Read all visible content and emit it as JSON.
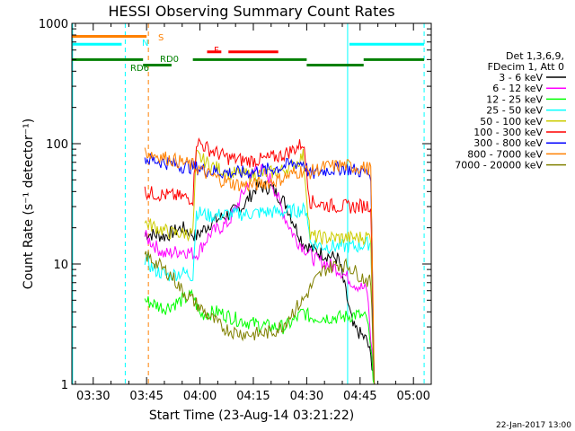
{
  "chart_data": {
    "type": "line",
    "title": "HESSI Observing Summary Count Rates",
    "xlabel": "Start Time (23-Aug-14 03:21:22)",
    "ylabel": "Count Rate (s⁻¹ detector⁻¹)",
    "y_scale": "log",
    "ylim": [
      1,
      1000
    ],
    "x_unit": "minutes after 03:00 UT",
    "xlim": [
      24,
      125
    ],
    "x_ticks": [
      {
        "t": 30,
        "label": "03:30"
      },
      {
        "t": 45,
        "label": "03:45"
      },
      {
        "t": 60,
        "label": "04:00"
      },
      {
        "t": 75,
        "label": "04:15"
      },
      {
        "t": 90,
        "label": "04:30"
      },
      {
        "t": 105,
        "label": "04:45"
      },
      {
        "t": 120,
        "label": "05:00"
      }
    ],
    "y_ticks": [
      {
        "v": 1,
        "label": "1"
      },
      {
        "v": 10,
        "label": "10"
      },
      {
        "v": 100,
        "label": "100"
      },
      {
        "v": 1000,
        "label": "1000"
      }
    ],
    "legend": {
      "header": [
        "Det 1,3,6,9,",
        "FDecim 1, Att 0"
      ],
      "placement": "right"
    },
    "series": [
      {
        "name": "3 - 6 keV",
        "color": "#000000",
        "points": [
          [
            44.5,
            18
          ],
          [
            50,
            17
          ],
          [
            55,
            20
          ],
          [
            59,
            17
          ],
          [
            63,
            22
          ],
          [
            68,
            26
          ],
          [
            72,
            30
          ],
          [
            76,
            44
          ],
          [
            80,
            43
          ],
          [
            84,
            32
          ],
          [
            87,
            20
          ],
          [
            89,
            15
          ],
          [
            92,
            13
          ],
          [
            95,
            12
          ],
          [
            99,
            11
          ],
          [
            103,
            3
          ],
          [
            107,
            2.3
          ],
          [
            109,
            1.2
          ]
        ]
      },
      {
        "name": "6 - 12 keV",
        "color": "#ff00ff",
        "points": [
          [
            44.5,
            17
          ],
          [
            50,
            12
          ],
          [
            55,
            13
          ],
          [
            59,
            12
          ],
          [
            63,
            18
          ],
          [
            68,
            22
          ],
          [
            72,
            38
          ],
          [
            76,
            66
          ],
          [
            80,
            50
          ],
          [
            84,
            24
          ],
          [
            87,
            16
          ],
          [
            89,
            14
          ],
          [
            92,
            11
          ],
          [
            96,
            10
          ],
          [
            99,
            9
          ],
          [
            103,
            7
          ],
          [
            107,
            6
          ],
          [
            109,
            1
          ]
        ]
      },
      {
        "name": "12 - 25 keV",
        "color": "#00ff00",
        "points": [
          [
            44.5,
            5
          ],
          [
            50,
            4.3
          ],
          [
            55,
            5
          ],
          [
            58,
            5.5
          ],
          [
            60,
            3.8
          ],
          [
            65,
            4
          ],
          [
            70,
            3.5
          ],
          [
            75,
            3.2
          ],
          [
            80,
            3
          ],
          [
            84,
            3
          ],
          [
            87,
            3.5
          ],
          [
            89,
            4
          ],
          [
            91,
            3.6
          ],
          [
            95,
            3.6
          ],
          [
            100,
            3.6
          ],
          [
            104,
            3.8
          ],
          [
            107,
            3.5
          ],
          [
            109,
            1
          ]
        ]
      },
      {
        "name": "25 - 50 keV",
        "color": "#00ffff",
        "points": [
          [
            44.5,
            11
          ],
          [
            47,
            9
          ],
          [
            51,
            8
          ],
          [
            55,
            8.5
          ],
          [
            58,
            8
          ],
          [
            59,
            27
          ],
          [
            63,
            25
          ],
          [
            68,
            26
          ],
          [
            73,
            26
          ],
          [
            78,
            27
          ],
          [
            83,
            27
          ],
          [
            88,
            28
          ],
          [
            90,
            28
          ],
          [
            91,
            15
          ],
          [
            95,
            14
          ],
          [
            100,
            14
          ],
          [
            104,
            14
          ],
          [
            108,
            15
          ],
          [
            109,
            1
          ]
        ]
      },
      {
        "name": "50 - 100 keV",
        "color": "#cccc00",
        "points": [
          [
            44.5,
            22
          ],
          [
            48,
            20
          ],
          [
            52,
            18
          ],
          [
            56,
            18
          ],
          [
            58,
            18
          ],
          [
            59,
            80
          ],
          [
            63,
            66
          ],
          [
            68,
            57
          ],
          [
            73,
            55
          ],
          [
            78,
            56
          ],
          [
            83,
            60
          ],
          [
            87,
            68
          ],
          [
            89,
            80
          ],
          [
            91,
            17
          ],
          [
            95,
            16.5
          ],
          [
            100,
            16.5
          ],
          [
            104,
            16.5
          ],
          [
            108,
            17
          ],
          [
            109,
            1
          ]
        ]
      },
      {
        "name": "100 - 300 keV",
        "color": "#ff0000",
        "points": [
          [
            44.5,
            40
          ],
          [
            48,
            38
          ],
          [
            52,
            37
          ],
          [
            55,
            36
          ],
          [
            58,
            35
          ],
          [
            59,
            105
          ],
          [
            63,
            88
          ],
          [
            68,
            76
          ],
          [
            73,
            72
          ],
          [
            78,
            74
          ],
          [
            83,
            80
          ],
          [
            87,
            92
          ],
          [
            89,
            102
          ],
          [
            91,
            33
          ],
          [
            95,
            31
          ],
          [
            100,
            30
          ],
          [
            104,
            30
          ],
          [
            108,
            31
          ],
          [
            109,
            1
          ]
        ]
      },
      {
        "name": "300 - 800 keV",
        "color": "#0000ff",
        "points": [
          [
            44.5,
            75
          ],
          [
            48,
            72
          ],
          [
            52,
            68
          ],
          [
            55,
            65
          ],
          [
            58,
            64
          ],
          [
            62,
            60
          ],
          [
            66,
            58
          ],
          [
            70,
            57
          ],
          [
            74,
            58
          ],
          [
            78,
            60
          ],
          [
            82,
            63
          ],
          [
            86,
            68
          ],
          [
            89,
            70
          ],
          [
            91,
            55
          ],
          [
            95,
            60
          ],
          [
            100,
            63
          ],
          [
            104,
            60
          ],
          [
            108,
            56
          ],
          [
            109,
            1
          ]
        ]
      },
      {
        "name": "800 - 7000 keV",
        "color": "#ff8000",
        "points": [
          [
            44.5,
            85
          ],
          [
            48,
            80
          ],
          [
            52,
            74
          ],
          [
            55,
            70
          ],
          [
            58,
            66
          ],
          [
            62,
            56
          ],
          [
            66,
            50
          ],
          [
            70,
            46
          ],
          [
            74,
            45
          ],
          [
            78,
            47
          ],
          [
            82,
            50
          ],
          [
            86,
            56
          ],
          [
            89,
            60
          ],
          [
            91,
            58
          ],
          [
            95,
            64
          ],
          [
            100,
            66
          ],
          [
            104,
            64
          ],
          [
            108,
            62
          ],
          [
            109,
            1
          ]
        ]
      },
      {
        "name": "7000 - 20000 keV",
        "color": "#808000",
        "points": [
          [
            44.5,
            12
          ],
          [
            48,
            10
          ],
          [
            52,
            8
          ],
          [
            55,
            6
          ],
          [
            58,
            5
          ],
          [
            62,
            3.8
          ],
          [
            66,
            3
          ],
          [
            70,
            2.7
          ],
          [
            75,
            2.6
          ],
          [
            80,
            2.7
          ],
          [
            83,
            3
          ],
          [
            86,
            4
          ],
          [
            89,
            5
          ],
          [
            92,
            7
          ],
          [
            95,
            9
          ],
          [
            99,
            10
          ],
          [
            102,
            9.5
          ],
          [
            105,
            8
          ],
          [
            108,
            7
          ],
          [
            109,
            1
          ]
        ]
      }
    ],
    "annotations": {
      "segment_labels": [
        "S",
        "N",
        "F",
        "RD0",
        "RD6"
      ],
      "flag_bars": [
        {
          "label": "S",
          "color": "#ff8000",
          "level": 780,
          "spans": [
            [
              24,
              45
            ]
          ]
        },
        {
          "label": "N",
          "color": "#00ffff",
          "level": 670,
          "spans": [
            [
              24,
              38
            ]
          ]
        },
        {
          "label": "N",
          "color": "#00ffff",
          "level": 670,
          "spans": [
            [
              102,
              123
            ]
          ]
        },
        {
          "label": "F",
          "color": "#ff0000",
          "level": 580,
          "spans": [
            [
              62,
              66
            ],
            [
              68,
              82
            ]
          ]
        },
        {
          "label": "RD0",
          "color": "#008000",
          "level": 500,
          "spans": [
            [
              24,
              44
            ],
            [
              58,
              90
            ],
            [
              106,
              123
            ]
          ]
        },
        {
          "label": "RD6",
          "color": "#008000",
          "level": 450,
          "spans": [
            [
              44,
              52
            ],
            [
              90,
              106
            ]
          ]
        }
      ],
      "vlines": [
        {
          "t": 24.2,
          "color": "#00ffff",
          "style": "solid"
        },
        {
          "t": 39,
          "color": "#00ffff",
          "style": "dashed"
        },
        {
          "t": 45.5,
          "color": "#ff8000",
          "style": "dashed"
        },
        {
          "t": 101.5,
          "color": "#00ffff",
          "style": "solid"
        },
        {
          "t": 123,
          "color": "#00ffff",
          "style": "dashed"
        }
      ]
    },
    "footer_date": "22-Jan-2017 13:00"
  }
}
